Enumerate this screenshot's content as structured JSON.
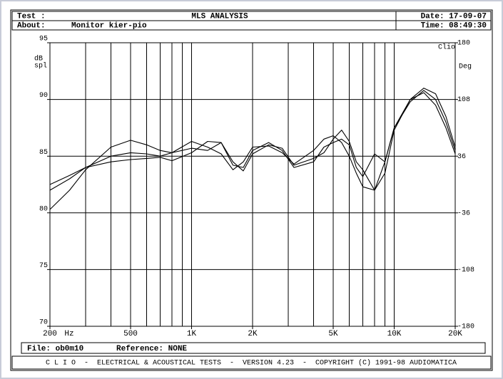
{
  "header": {
    "test_label": "Test :",
    "title": "MLS ANALYSIS",
    "date": "Date: 17-09-07",
    "about_label": "About:",
    "about": "Monitor kier-pio",
    "time": "Time: 08:49:30"
  },
  "chart_data": {
    "type": "line",
    "log_x": true,
    "xlabel": "Hz",
    "ylabel": [
      "dB",
      "spl"
    ],
    "y2label": "Deg",
    "annotation": "Clio",
    "x": [
      200,
      250,
      300,
      400,
      500,
      600,
      700,
      800,
      1000,
      1200,
      1400,
      1600,
      1800,
      2000,
      2400,
      2800,
      3200,
      4000,
      4500,
      5000,
      5500,
      6000,
      6500,
      7000,
      8000,
      9000,
      10000,
      12000,
      14000,
      16000,
      18000,
      20000
    ],
    "series": [
      {
        "color": "#000000",
        "values": [
          80.3,
          82,
          83.8,
          85.8,
          86.4,
          86.0,
          85.5,
          85.3,
          86.3,
          85.8,
          85.2,
          83.8,
          84.5,
          85.8,
          85.9,
          85.3,
          84.3,
          85.5,
          86.5,
          86.8,
          86.2,
          85.0,
          83.5,
          82.3,
          82.0,
          84.5,
          87.5,
          89.8,
          90.8,
          90.0,
          88,
          85.5
        ]
      },
      {
        "color": "#000000",
        "values": [
          82.5,
          83.3,
          84,
          84.5,
          84.7,
          84.8,
          84.9,
          84.6,
          85.3,
          86.3,
          86.2,
          84.2,
          84.0,
          85.5,
          86.2,
          85.5,
          84.0,
          84.5,
          85.8,
          86.2,
          86.5,
          86.0,
          84.0,
          83.2,
          85.2,
          84.5,
          87.5,
          90.0,
          90.6,
          89.5,
          87.5,
          85.2
        ]
      },
      {
        "color": "#000000",
        "values": [
          82.0,
          83.0,
          84,
          85.0,
          85.3,
          85.2,
          85.0,
          85.3,
          85.7,
          85.5,
          86.2,
          84.5,
          83.7,
          85.2,
          86.0,
          85.7,
          84.2,
          84.8,
          85.3,
          86.5,
          87.3,
          86.3,
          84.5,
          83.8,
          82.0,
          83.5,
          87.3,
          90.0,
          91.0,
          90.5,
          88.5,
          85.8
        ]
      }
    ],
    "xlim": [
      200,
      20000
    ],
    "xticks": [
      200,
      500,
      {
        "value": 1000,
        "label": "1K"
      },
      {
        "value": 2000,
        "label": "2K"
      },
      {
        "value": 5000,
        "label": "5K"
      },
      {
        "value": 10000,
        "label": "10K"
      },
      {
        "value": 20000,
        "label": "20K"
      }
    ],
    "xgrid": [
      300,
      400,
      600,
      700,
      800,
      900,
      3000,
      4000,
      6000,
      7000,
      8000,
      9000
    ],
    "ylim": [
      70,
      95
    ],
    "yticks": [
      70,
      75,
      80,
      85,
      90,
      95
    ],
    "y2lim": [
      -180,
      180
    ],
    "y2ticks": [
      -180,
      -108,
      -36,
      36,
      108,
      180
    ],
    "grid": true
  },
  "footer": {
    "file": "File: ob0m10",
    "reference": "Reference: NONE",
    "banner": "C L I O  -  ELECTRICAL & ACOUSTICAL TESTS  -  VERSION 4.23  -  COPYRIGHT (C) 1991-98 AUDIOMATICA"
  }
}
